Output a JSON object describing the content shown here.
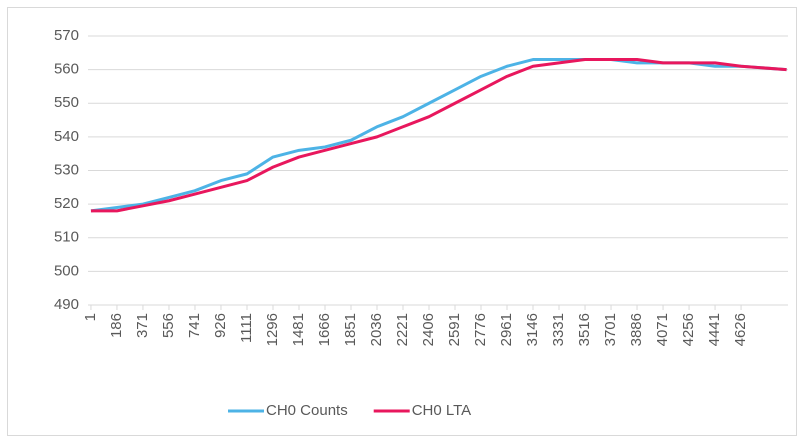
{
  "chart_data": {
    "type": "line",
    "x": [
      1,
      186,
      371,
      556,
      741,
      926,
      1111,
      1296,
      1481,
      1666,
      1851,
      2036,
      2221,
      2406,
      2591,
      2776,
      2961,
      3146,
      3331,
      3516,
      3701,
      3886,
      4071,
      4256,
      4441,
      4626,
      4950
    ],
    "series": [
      {
        "name": "CH0 Counts",
        "color": "#4db3e6",
        "values": [
          518,
          519,
          520,
          522,
          524,
          527,
          529,
          534,
          536,
          537,
          539,
          543,
          546,
          550,
          554,
          558,
          561,
          563,
          563,
          563,
          563,
          562,
          562,
          562,
          561,
          561,
          560
        ]
      },
      {
        "name": "CH0 LTA",
        "color": "#e8175d",
        "values": [
          518,
          518,
          519.5,
          521,
          523,
          525,
          527,
          531,
          534,
          536,
          538,
          540,
          543,
          546,
          550,
          554,
          558,
          561,
          562,
          563,
          563,
          563,
          562,
          562,
          562,
          561,
          560
        ]
      }
    ],
    "xlim": [
      -20,
      4960
    ],
    "xticks": [
      1,
      186,
      371,
      556,
      741,
      926,
      1111,
      1296,
      1481,
      1666,
      1851,
      2036,
      2221,
      2406,
      2591,
      2776,
      2961,
      3146,
      3331,
      3516,
      3701,
      3886,
      4071,
      4256,
      4441,
      4626
    ],
    "ylim": [
      490,
      570
    ],
    "yticks": [
      490,
      500,
      510,
      520,
      530,
      540,
      550,
      560,
      570
    ],
    "grid": true,
    "legend": "bottom"
  }
}
